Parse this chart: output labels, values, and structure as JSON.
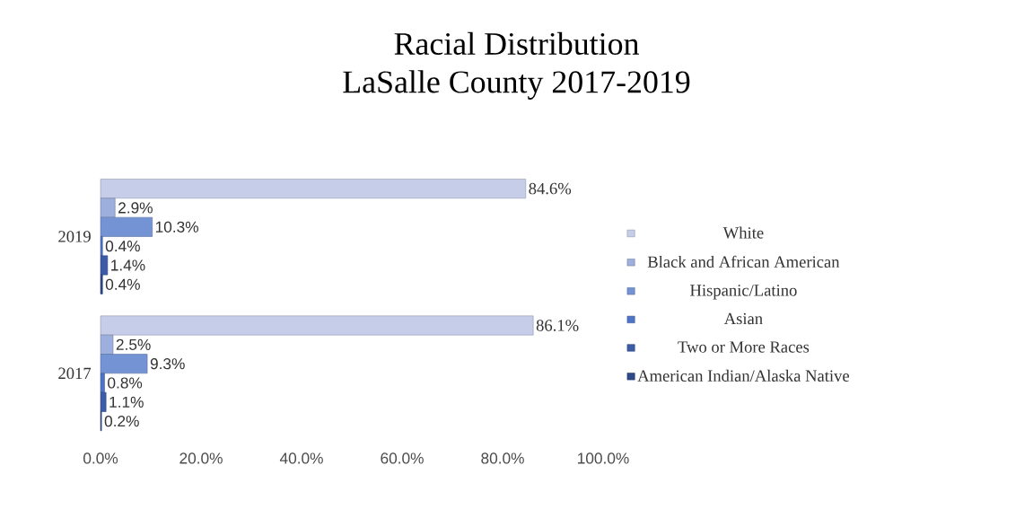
{
  "chart_data": {
    "type": "bar",
    "orientation": "horizontal",
    "title": "Racial Distribution",
    "subtitle": "LaSalle County 2017-2019",
    "categories": [
      "2019",
      "2017"
    ],
    "series": [
      {
        "name": "White",
        "color": "#c5cde8",
        "values": [
          84.6,
          86.1
        ],
        "value_labels": [
          "84.6%",
          "86.1%"
        ]
      },
      {
        "name": "Black and African American",
        "color": "#9dafdc",
        "values": [
          2.9,
          2.5
        ],
        "value_labels": [
          "2.9%",
          "2.5%"
        ]
      },
      {
        "name": "Hispanic/Latino",
        "color": "#7493d4",
        "values": [
          10.3,
          9.3
        ],
        "value_labels": [
          "10.3%",
          "9.3%"
        ]
      },
      {
        "name": "Asian",
        "color": "#4d74c6",
        "values": [
          0.4,
          0.8
        ],
        "value_labels": [
          "0.4%",
          "0.8%"
        ]
      },
      {
        "name": "Two or More Races",
        "color": "#3c5ca8",
        "values": [
          1.4,
          1.1
        ],
        "value_labels": [
          "1.4%",
          "1.1%"
        ]
      },
      {
        "name": "American Indian/Alaska Native",
        "color": "#2f4a8a",
        "values": [
          0.4,
          0.2
        ],
        "value_labels": [
          "0.4%",
          "0.2%"
        ]
      }
    ],
    "xlim": [
      0,
      100
    ],
    "xticks": [
      {
        "value": 0,
        "label": "0.0%"
      },
      {
        "value": 20,
        "label": "20.0%"
      },
      {
        "value": 40,
        "label": "40.0%"
      },
      {
        "value": 60,
        "label": "60.0%"
      },
      {
        "value": 80,
        "label": "80.0%"
      },
      {
        "value": 100,
        "label": "100.0%"
      }
    ],
    "legend": "right",
    "grid": false
  }
}
